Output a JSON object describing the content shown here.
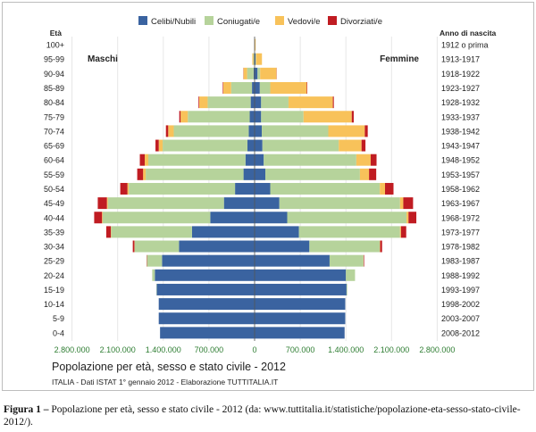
{
  "chart_data": {
    "type": "bar",
    "subtype": "population-pyramid-stacked",
    "title": "Popolazione per età, sesso e stato civile - 2012",
    "subtitle": "ITALIA - Dati ISTAT 1° gennaio 2012 - Elaborazione TUTTITALIA.IT",
    "left_group_label": "Maschi",
    "right_group_label": "Femmine",
    "age_axis_title": "Età",
    "birth_axis_title": "Anno di nascita",
    "legend_position": "top-center",
    "x_tick_labels": [
      "2.800.000",
      "2.100.000",
      "1.400.000",
      "700.000",
      "0",
      "700.000",
      "1.400.000",
      "2.100.000",
      "2.800.000"
    ],
    "xlim": [
      -2800000,
      2800000
    ],
    "series": [
      {
        "name": "Celibi/Nubili",
        "color": "#3a63a0"
      },
      {
        "name": "Coniugati/e",
        "color": "#b6d39b"
      },
      {
        "name": "Vedovi/e",
        "color": "#f8c25a"
      },
      {
        "name": "Divorziati/e",
        "color": "#c01c22"
      }
    ],
    "categories": [
      "100+",
      "95-99",
      "90-94",
      "85-89",
      "80-84",
      "75-79",
      "70-74",
      "65-69",
      "60-64",
      "55-59",
      "50-54",
      "45-49",
      "40-44",
      "35-39",
      "30-34",
      "25-29",
      "20-24",
      "15-19",
      "10-14",
      "5-9",
      "0-4"
    ],
    "birth_years": [
      "1912 o prima",
      "1913-1917",
      "1918-1922",
      "1923-1927",
      "1928-1932",
      "1933-1937",
      "1938-1942",
      "1943-1947",
      "1948-1952",
      "1953-1957",
      "1958-1962",
      "1963-1967",
      "1968-1972",
      "1973-1977",
      "1978-1982",
      "1983-1987",
      "1988-1992",
      "1993-1997",
      "1998-2002",
      "2003-2007",
      "2008-2012"
    ],
    "male": [
      {
        "age": "100+",
        "celibi": 1000,
        "coniugati": 1500,
        "vedovi": 2000,
        "divorziati": 0
      },
      {
        "age": "95-99",
        "celibi": 5000,
        "coniugati": 15000,
        "vedovi": 15000,
        "divorziati": 0
      },
      {
        "age": "90-94",
        "celibi": 15000,
        "coniugati": 100000,
        "vedovi": 55000,
        "divorziati": 3000
      },
      {
        "age": "85-89",
        "celibi": 40000,
        "coniugati": 320000,
        "vedovi": 120000,
        "divorziati": 8000
      },
      {
        "age": "80-84",
        "celibi": 60000,
        "coniugati": 660000,
        "vedovi": 130000,
        "divorziati": 10000
      },
      {
        "age": "75-79",
        "celibi": 75000,
        "coniugati": 950000,
        "vedovi": 110000,
        "divorziati": 20000
      },
      {
        "age": "70-74",
        "celibi": 90000,
        "coniugati": 1150000,
        "vedovi": 85000,
        "divorziati": 35000
      },
      {
        "age": "65-69",
        "celibi": 110000,
        "coniugati": 1300000,
        "vedovi": 60000,
        "divorziati": 50000
      },
      {
        "age": "60-64",
        "celibi": 140000,
        "coniugati": 1490000,
        "vedovi": 55000,
        "divorziati": 75000
      },
      {
        "age": "55-59",
        "celibi": 170000,
        "coniugati": 1500000,
        "vedovi": 40000,
        "divorziati": 90000
      },
      {
        "age": "50-54",
        "celibi": 300000,
        "coniugati": 1630000,
        "vedovi": 20000,
        "divorziati": 110000
      },
      {
        "age": "45-49",
        "celibi": 470000,
        "coniugati": 1780000,
        "vedovi": 15000,
        "divorziati": 140000
      },
      {
        "age": "40-44",
        "celibi": 680000,
        "coniugati": 1650000,
        "vedovi": 10000,
        "divorziati": 120000
      },
      {
        "age": "35-39",
        "celibi": 960000,
        "coniugati": 1240000,
        "vedovi": 5000,
        "divorziati": 70000
      },
      {
        "age": "30-34",
        "celibi": 1160000,
        "coniugati": 680000,
        "vedovi": 3000,
        "divorziati": 25000
      },
      {
        "age": "25-29",
        "celibi": 1420000,
        "coniugati": 230000,
        "vedovi": 1000,
        "divorziati": 5000
      },
      {
        "age": "20-24",
        "celibi": 1530000,
        "coniugati": 40000,
        "vedovi": 0,
        "divorziati": 0
      },
      {
        "age": "15-19",
        "celibi": 1500000,
        "coniugati": 5000,
        "vedovi": 0,
        "divorziati": 0
      },
      {
        "age": "10-14",
        "celibi": 1470000,
        "coniugati": 0,
        "vedovi": 0,
        "divorziati": 0
      },
      {
        "age": "5-9",
        "celibi": 1470000,
        "coniugati": 0,
        "vedovi": 0,
        "divorziati": 0
      },
      {
        "age": "0-4",
        "celibi": 1450000,
        "coniugati": 0,
        "vedovi": 0,
        "divorziati": 0
      }
    ],
    "female": [
      {
        "age": "100+",
        "nubili": 3000,
        "coniugate": 1000,
        "vedove": 12000,
        "divorziate": 0
      },
      {
        "age": "95-99",
        "nubili": 15000,
        "coniugate": 8000,
        "vedove": 90000,
        "divorziate": 0
      },
      {
        "age": "90-94",
        "nubili": 45000,
        "coniugate": 40000,
        "vedove": 250000,
        "divorziate": 3000
      },
      {
        "age": "85-89",
        "nubili": 80000,
        "coniugate": 160000,
        "vedove": 560000,
        "divorziate": 8000
      },
      {
        "age": "80-84",
        "nubili": 100000,
        "coniugate": 420000,
        "vedove": 680000,
        "divorziate": 15000
      },
      {
        "age": "75-79",
        "nubili": 100000,
        "coniugate": 650000,
        "vedove": 740000,
        "divorziate": 30000
      },
      {
        "age": "70-74",
        "nubili": 110000,
        "coniugate": 1020000,
        "vedove": 560000,
        "divorziate": 45000
      },
      {
        "age": "65-69",
        "nubili": 120000,
        "coniugate": 1170000,
        "vedove": 350000,
        "divorziate": 60000
      },
      {
        "age": "60-64",
        "nubili": 140000,
        "coniugate": 1420000,
        "vedove": 220000,
        "divorziate": 90000
      },
      {
        "age": "55-59",
        "nubili": 165000,
        "coniugate": 1450000,
        "vedove": 140000,
        "divorziate": 110000
      },
      {
        "age": "50-54",
        "nubili": 240000,
        "coniugate": 1680000,
        "vedove": 80000,
        "divorziate": 130000
      },
      {
        "age": "45-49",
        "nubili": 380000,
        "coniugate": 1850000,
        "vedove": 50000,
        "divorziate": 150000
      },
      {
        "age": "40-44",
        "nubili": 500000,
        "coniugate": 1830000,
        "vedove": 30000,
        "divorziate": 120000
      },
      {
        "age": "35-39",
        "nubili": 680000,
        "coniugate": 1550000,
        "vedove": 15000,
        "divorziate": 80000
      },
      {
        "age": "30-34",
        "nubili": 840000,
        "coniugate": 1080000,
        "vedove": 5000,
        "divorziate": 30000
      },
      {
        "age": "25-29",
        "nubili": 1150000,
        "coniugate": 520000,
        "vedove": 2000,
        "divorziate": 8000
      },
      {
        "age": "20-24",
        "nubili": 1400000,
        "coniugate": 140000,
        "vedove": 0,
        "divorziate": 0
      },
      {
        "age": "15-19",
        "nubili": 1410000,
        "coniugate": 10000,
        "vedove": 0,
        "divorziate": 0
      },
      {
        "age": "10-14",
        "nubili": 1390000,
        "coniugate": 0,
        "vedove": 0,
        "divorziate": 0
      },
      {
        "age": "5-9",
        "nubili": 1390000,
        "coniugate": 0,
        "vedove": 0,
        "divorziate": 0
      },
      {
        "age": "0-4",
        "nubili": 1380000,
        "coniugate": 0,
        "vedove": 0,
        "divorziate": 0
      }
    ]
  },
  "caption": {
    "label": "Figura 1 –",
    "text": "Popolazione per età, sesso e stato civile - 2012 (da: www.tuttitalia.it/statistiche/popolazione-eta-sesso-stato-civile-2012/)."
  }
}
